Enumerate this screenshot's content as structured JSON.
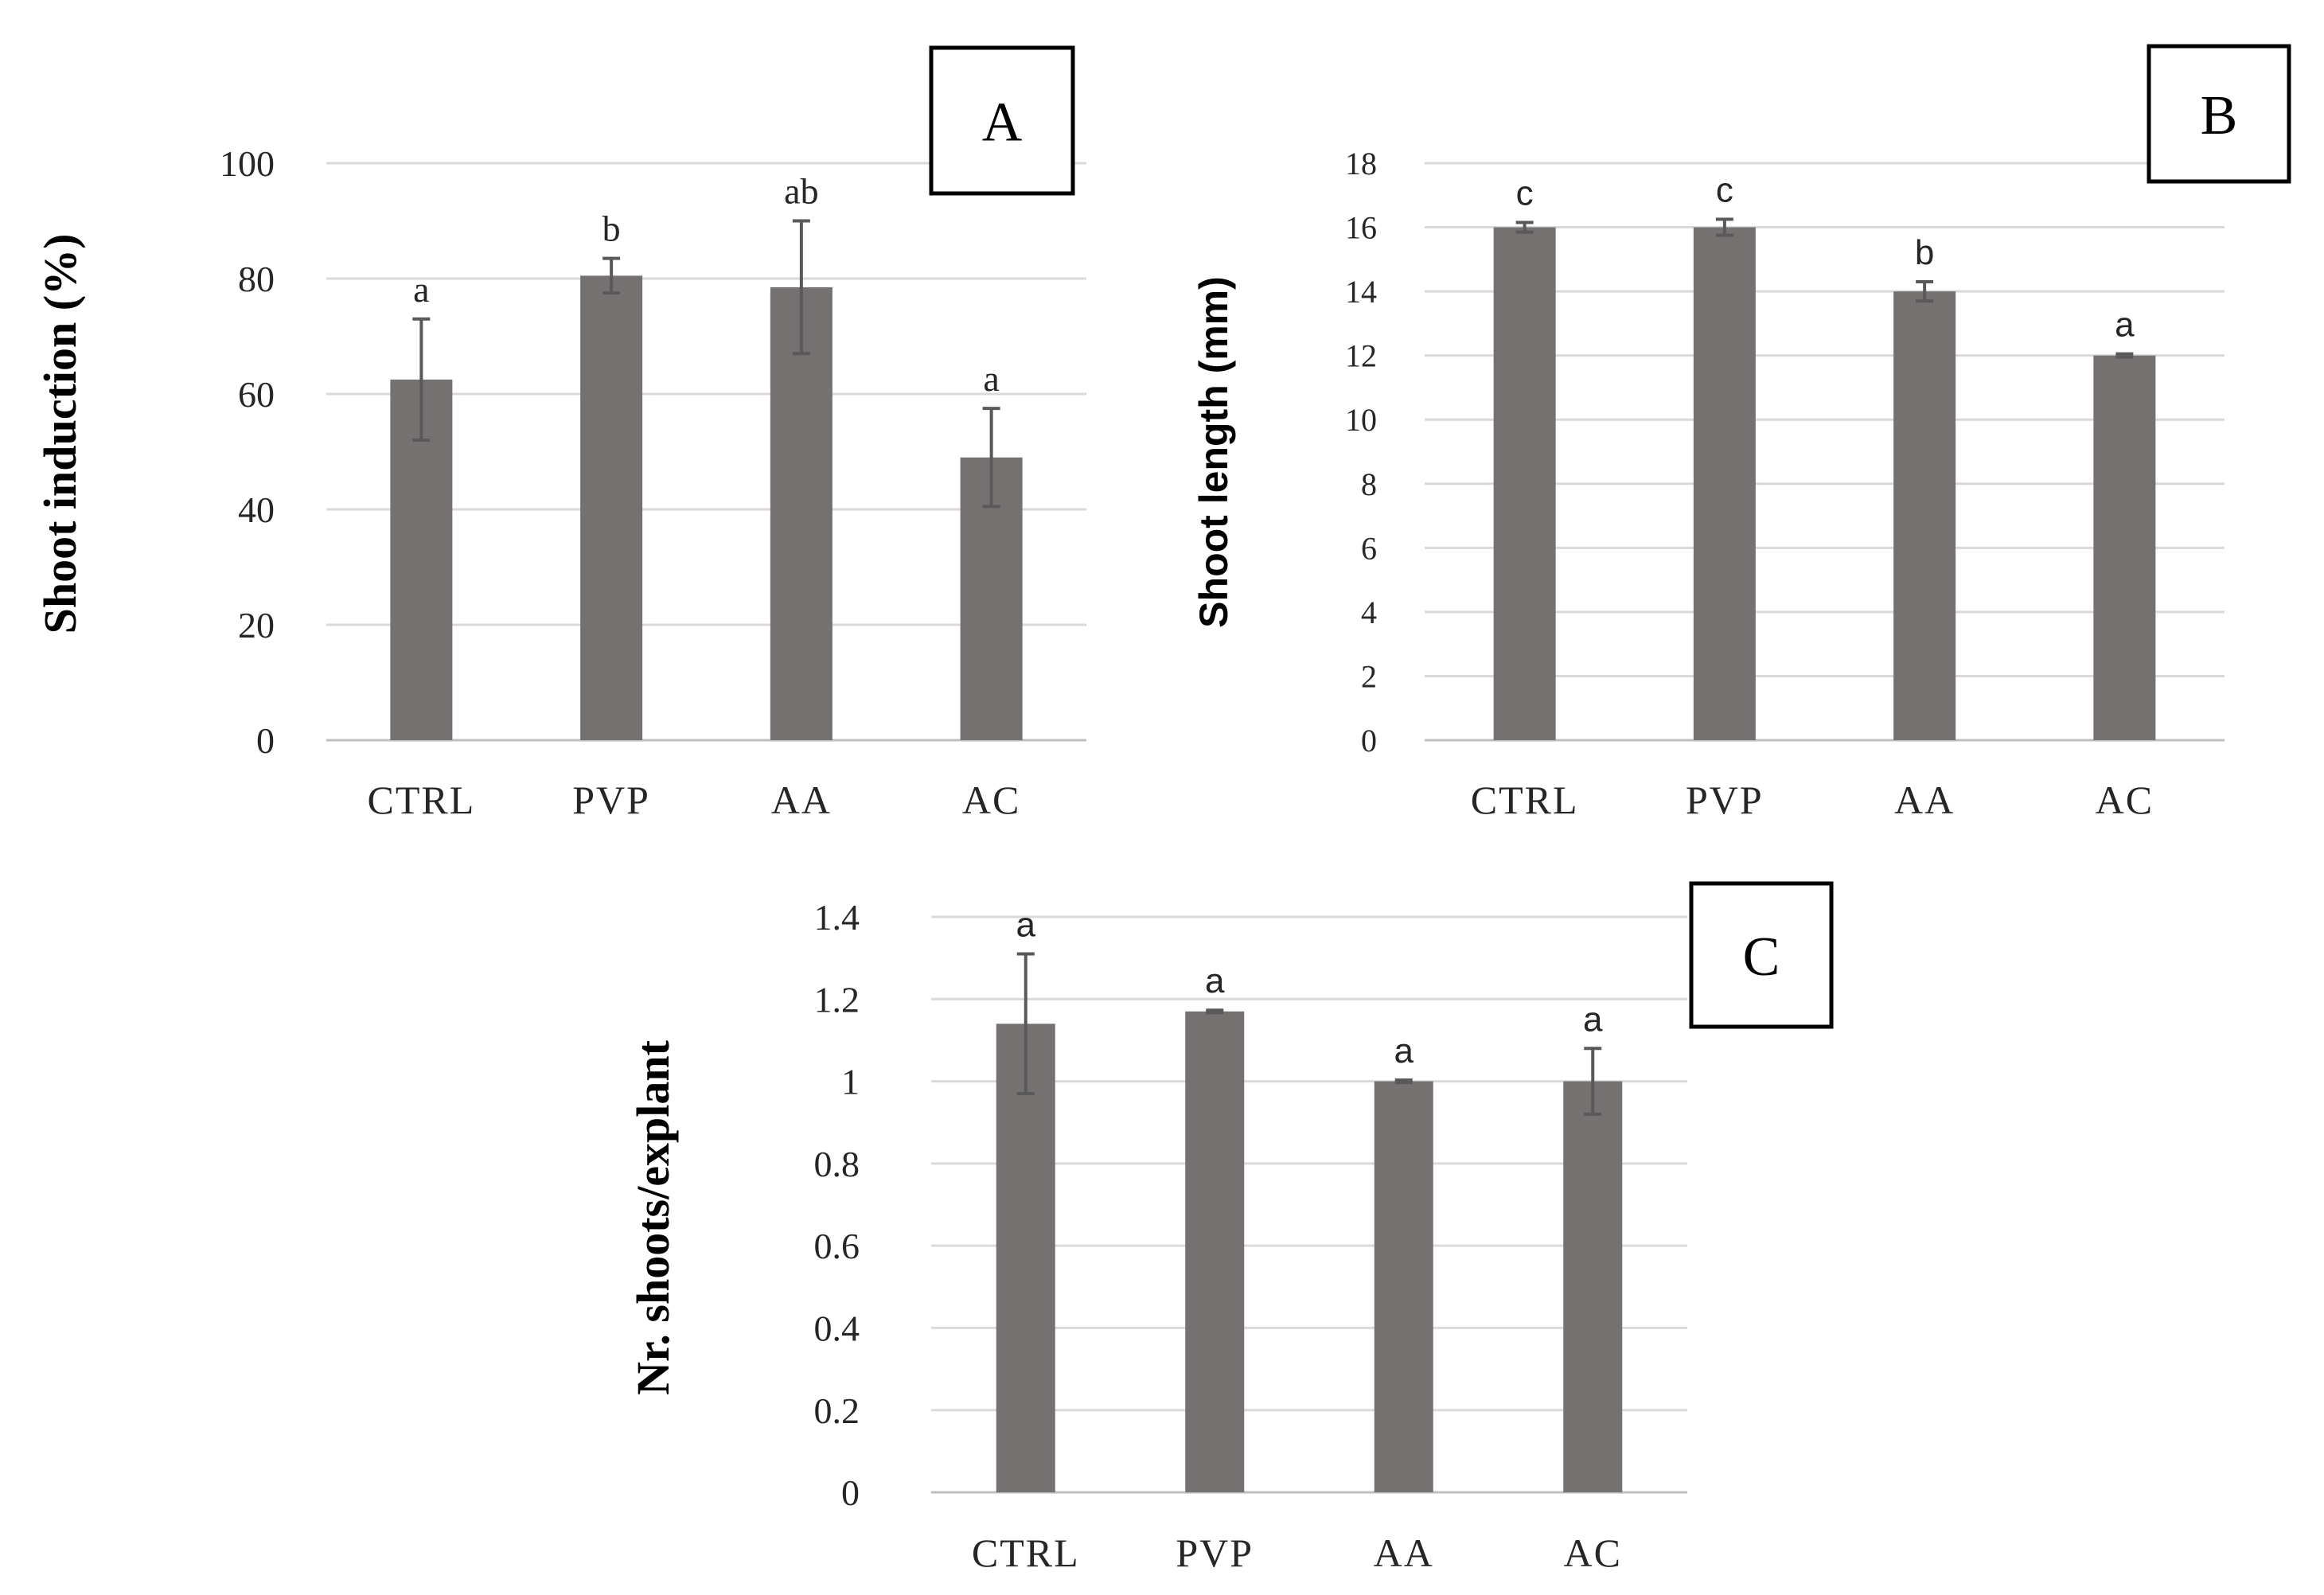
{
  "chart_data": [
    {
      "id": "A",
      "type": "bar",
      "panel_label": "A",
      "ylabel": "Shoot induction (%)",
      "xlabel": "",
      "categories": [
        "CTRL",
        "PVP",
        "AA",
        "AC"
      ],
      "values": [
        62.5,
        80.5,
        78.5,
        49
      ],
      "errors": [
        10.5,
        3,
        11.5,
        8.5
      ],
      "significance": [
        "a",
        "b",
        "ab",
        "a"
      ],
      "ylim": [
        0,
        100
      ],
      "yticks": [
        0,
        20,
        40,
        60,
        80,
        100
      ],
      "ytick_labels": [
        "0",
        "20",
        "40",
        "60",
        "80",
        "100"
      ],
      "grid": true,
      "bar_color": "#767171"
    },
    {
      "id": "B",
      "type": "bar",
      "panel_label": "B",
      "ylabel": "Shoot length (mm)",
      "xlabel": "",
      "categories": [
        "CTRL",
        "PVP",
        "AA",
        "AC"
      ],
      "values": [
        16,
        16,
        14,
        12
      ],
      "errors": [
        0.15,
        0.25,
        0.3,
        0.05
      ],
      "significance": [
        "c",
        "c",
        "b",
        "a"
      ],
      "ylim": [
        0,
        18
      ],
      "yticks": [
        0,
        2,
        4,
        6,
        8,
        10,
        12,
        14,
        16,
        18
      ],
      "ytick_labels": [
        "0",
        "2",
        "4",
        "6",
        "8",
        "10",
        "12",
        "14",
        "16",
        "18"
      ],
      "grid": true,
      "bar_color": "#767171"
    },
    {
      "id": "C",
      "type": "bar",
      "panel_label": "C",
      "ylabel": "Nr. shoots/explant",
      "xlabel": "",
      "categories": [
        "CTRL",
        "PVP",
        "AA",
        "AC"
      ],
      "values": [
        1.14,
        1.17,
        1.0,
        1.0
      ],
      "errors": [
        0.17,
        0.003,
        0.003,
        0.08
      ],
      "significance": [
        "a",
        "a",
        "a",
        "a"
      ],
      "ylim": [
        0,
        1.4
      ],
      "yticks": [
        0,
        0.2,
        0.4,
        0.6,
        0.8,
        1.0,
        1.2,
        1.4
      ],
      "ytick_labels": [
        "0",
        "0.2",
        "0.4",
        "0.6",
        "0.8",
        "1",
        "1.2",
        "1.4"
      ],
      "grid": true,
      "bar_color": "#767171"
    }
  ]
}
